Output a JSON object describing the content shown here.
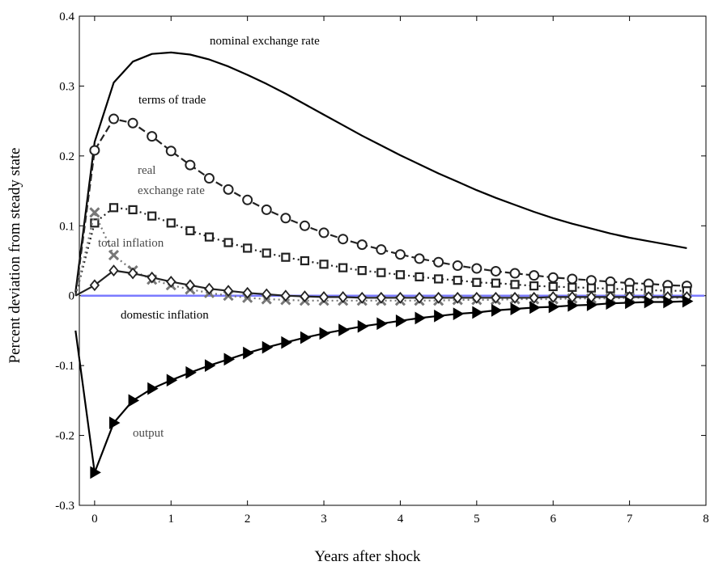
{
  "chart_data": {
    "type": "line",
    "title": "",
    "xlabel": "Years after shock",
    "ylabel": "Percent deviation from steady state",
    "xlim": [
      -0.2,
      8
    ],
    "ylim": [
      -0.3,
      0.4
    ],
    "x_ticks": [
      0,
      1,
      2,
      3,
      4,
      5,
      6,
      7,
      8
    ],
    "y_ticks": [
      -0.3,
      -0.2,
      -0.1,
      0,
      0.1,
      0.2,
      0.3,
      0.4
    ],
    "x_tick_labels": [
      "0",
      "1",
      "2",
      "3",
      "4",
      "5",
      "6",
      "7",
      "8"
    ],
    "y_tick_labels": [
      "-0.3",
      "-0.2",
      "-0.1",
      "0",
      "0.1",
      "0.2",
      "0.3",
      "0.4"
    ],
    "grid": false,
    "legend": "none",
    "annotations": [
      {
        "text": "nominal exchange rate",
        "series": "nominal exchange rate"
      },
      {
        "text": "terms of trade",
        "series": "terms of trade"
      },
      {
        "text": "real",
        "series": "real exchange rate"
      },
      {
        "text": "exchange rate",
        "series": "real exchange rate"
      },
      {
        "text": "total inflation",
        "series": "total inflation"
      },
      {
        "text": "domestic inflation",
        "series": "domestic inflation"
      },
      {
        "text": "output",
        "series": "output"
      }
    ],
    "reference_line": {
      "y": 0,
      "color": "#7b7bff"
    },
    "series": [
      {
        "name": "nominal exchange rate",
        "color": "#000000",
        "style": "solid",
        "marker": "none",
        "x": [
          -0.25,
          0,
          0.25,
          0.5,
          0.75,
          1,
          1.25,
          1.5,
          1.75,
          2,
          2.25,
          2.5,
          2.75,
          3,
          3.25,
          3.5,
          3.75,
          4,
          4.25,
          4.5,
          4.75,
          5,
          5.25,
          5.5,
          5.75,
          6,
          6.25,
          6.5,
          6.75,
          7,
          7.25,
          7.5,
          7.75
        ],
        "y": [
          0.005,
          0.22,
          0.305,
          0.335,
          0.346,
          0.348,
          0.345,
          0.338,
          0.328,
          0.316,
          0.303,
          0.289,
          0.274,
          0.259,
          0.244,
          0.229,
          0.215,
          0.201,
          0.188,
          0.175,
          0.163,
          0.151,
          0.14,
          0.13,
          0.12,
          0.111,
          0.103,
          0.096,
          0.089,
          0.083,
          0.078,
          0.073,
          0.068
        ]
      },
      {
        "name": "terms of trade",
        "color": "#222222",
        "style": "dashed",
        "marker": "circle",
        "x": [
          -0.25,
          0,
          0.25,
          0.5,
          0.75,
          1,
          1.25,
          1.5,
          1.75,
          2,
          2.25,
          2.5,
          2.75,
          3,
          3.25,
          3.5,
          3.75,
          4,
          4.25,
          4.5,
          4.75,
          5,
          5.25,
          5.5,
          5.75,
          6,
          6.25,
          6.5,
          6.75,
          7,
          7.25,
          7.5,
          7.75
        ],
        "y": [
          0.0,
          0.208,
          0.253,
          0.247,
          0.228,
          0.207,
          0.187,
          0.168,
          0.152,
          0.137,
          0.123,
          0.111,
          0.1,
          0.09,
          0.081,
          0.073,
          0.066,
          0.059,
          0.053,
          0.048,
          0.043,
          0.039,
          0.035,
          0.032,
          0.029,
          0.026,
          0.024,
          0.022,
          0.02,
          0.018,
          0.017,
          0.015,
          0.014
        ]
      },
      {
        "name": "real exchange rate",
        "color": "#222222",
        "style": "dotted",
        "marker": "square",
        "x": [
          -0.25,
          0,
          0.25,
          0.5,
          0.75,
          1,
          1.25,
          1.5,
          1.75,
          2,
          2.25,
          2.5,
          2.75,
          3,
          3.25,
          3.5,
          3.75,
          4,
          4.25,
          4.5,
          4.75,
          5,
          5.25,
          5.5,
          5.75,
          6,
          6.25,
          6.5,
          6.75,
          7,
          7.25,
          7.5,
          7.75
        ],
        "y": [
          0.0,
          0.104,
          0.126,
          0.123,
          0.114,
          0.104,
          0.093,
          0.084,
          0.076,
          0.068,
          0.061,
          0.055,
          0.05,
          0.045,
          0.04,
          0.036,
          0.033,
          0.03,
          0.027,
          0.024,
          0.022,
          0.019,
          0.018,
          0.016,
          0.014,
          0.013,
          0.012,
          0.011,
          0.01,
          0.009,
          0.008,
          0.007,
          0.007
        ]
      },
      {
        "name": "total inflation",
        "color": "#777777",
        "style": "dotted",
        "marker": "x",
        "x": [
          -0.25,
          0,
          0.25,
          0.5,
          0.75,
          1,
          1.25,
          1.5,
          1.75,
          2,
          2.25,
          2.5,
          2.75,
          3,
          3.25,
          3.5,
          3.75,
          4,
          4.25,
          4.5,
          4.75,
          5,
          5.25,
          5.5,
          5.75,
          6,
          6.25,
          6.5,
          6.75,
          7,
          7.25,
          7.5,
          7.75
        ],
        "y": [
          0.0,
          0.119,
          0.058,
          0.036,
          0.023,
          0.015,
          0.009,
          0.004,
          0.0,
          -0.003,
          -0.005,
          -0.006,
          -0.007,
          -0.007,
          -0.007,
          -0.007,
          -0.007,
          -0.007,
          -0.007,
          -0.007,
          -0.006,
          -0.006,
          -0.006,
          -0.005,
          -0.005,
          -0.005,
          -0.004,
          -0.004,
          -0.004,
          -0.003,
          -0.003,
          -0.003,
          -0.003
        ]
      },
      {
        "name": "domestic inflation",
        "color": "#222222",
        "style": "solid",
        "marker": "diamond",
        "x": [
          -0.25,
          0,
          0.25,
          0.5,
          0.75,
          1,
          1.25,
          1.5,
          1.75,
          2,
          2.25,
          2.5,
          2.75,
          3,
          3.25,
          3.5,
          3.75,
          4,
          4.25,
          4.5,
          4.75,
          5,
          5.25,
          5.5,
          5.75,
          6,
          6.25,
          6.5,
          6.75,
          7,
          7.25,
          7.5,
          7.75
        ],
        "y": [
          0.0,
          0.015,
          0.036,
          0.032,
          0.026,
          0.02,
          0.015,
          0.01,
          0.007,
          0.004,
          0.002,
          0.0,
          -0.001,
          -0.002,
          -0.002,
          -0.003,
          -0.003,
          -0.003,
          -0.003,
          -0.003,
          -0.003,
          -0.003,
          -0.003,
          -0.003,
          -0.003,
          -0.002,
          -0.002,
          -0.002,
          -0.002,
          -0.002,
          -0.002,
          -0.002,
          -0.002
        ]
      },
      {
        "name": "output",
        "color": "#000000",
        "style": "solid",
        "marker": "triangle-right",
        "x": [
          -0.25,
          0,
          0.25,
          0.5,
          0.75,
          1,
          1.25,
          1.5,
          1.75,
          2,
          2.25,
          2.5,
          2.75,
          3,
          3.25,
          3.5,
          3.75,
          4,
          4.25,
          4.5,
          4.75,
          5,
          5.25,
          5.5,
          5.75,
          6,
          6.25,
          6.5,
          6.75,
          7,
          7.25,
          7.5,
          7.75
        ],
        "y": [
          -0.05,
          -0.253,
          -0.182,
          -0.15,
          -0.133,
          -0.121,
          -0.11,
          -0.1,
          -0.091,
          -0.082,
          -0.074,
          -0.067,
          -0.06,
          -0.054,
          -0.049,
          -0.044,
          -0.04,
          -0.036,
          -0.032,
          -0.029,
          -0.026,
          -0.024,
          -0.021,
          -0.019,
          -0.017,
          -0.016,
          -0.014,
          -0.013,
          -0.011,
          -0.01,
          -0.009,
          -0.009,
          -0.008
        ]
      }
    ]
  }
}
